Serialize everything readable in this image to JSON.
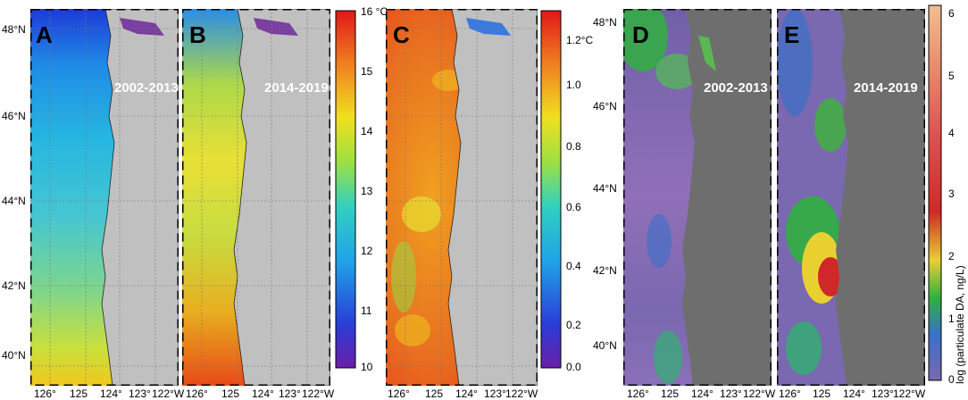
{
  "panels": {
    "A": {
      "letter": "A",
      "period": ""
    },
    "B": {
      "letter": "B",
      "period": "2014-2019"
    },
    "C": {
      "letter": "C",
      "period": ""
    },
    "D": {
      "letter": "D",
      "period": "2002-2013"
    },
    "E": {
      "letter": "E",
      "period": "2014-2019"
    },
    "A_period": "2002-2013"
  },
  "lat_labels": [
    "48°N",
    "46°N",
    "44°N",
    "42°N",
    "40°N"
  ],
  "lat_labels_de": [
    "48°N",
    "46°N",
    "44°N",
    "42°N",
    "40°N"
  ],
  "lon_labels": [
    "126°",
    "125",
    "124°",
    "123°",
    "122°W"
  ],
  "colorbar_sst": {
    "ticks": [
      "16 °C",
      "15",
      "14",
      "13",
      "12",
      "11",
      "10"
    ],
    "range": [
      10,
      16
    ],
    "colormap": "jet"
  },
  "colorbar_diff": {
    "ticks": [
      "1.2°C",
      "1.0",
      "0.8",
      "0.6",
      "0.4",
      "0.2",
      "0.0"
    ],
    "range": [
      0.0,
      1.2
    ],
    "colormap": "jet"
  },
  "colorbar_da": {
    "ticks": [
      "6",
      "5",
      "4",
      "3",
      "2",
      "1",
      "0"
    ],
    "range": [
      0,
      6
    ],
    "title": "log (particulate DA, ng/L)",
    "colormap": "parula-like"
  },
  "colors": {
    "land_light": "#c0c0c0",
    "land_dark": "#6e6e6e",
    "coast_water": "#7a3fa0"
  }
}
